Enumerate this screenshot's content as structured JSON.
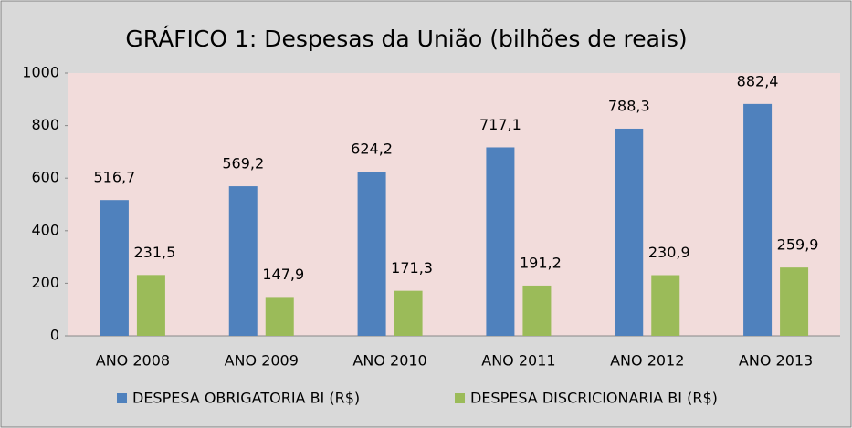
{
  "chart_data": {
    "type": "bar",
    "title": "GRÁFICO 1: Despesas da União (bilhões de reais)",
    "categories": [
      "ANO 2008",
      "ANO 2009",
      "ANO 2010",
      "ANO 2011",
      "ANO 2012",
      "ANO 2013"
    ],
    "series": [
      {
        "name": "DESPESA OBRIGATORIA BI (R$)",
        "color": "#4f81bd",
        "values": [
          516.7,
          569.2,
          624.2,
          717.1,
          788.3,
          882.4
        ],
        "value_labels": [
          "516,7",
          "569,2",
          "624,2",
          "717,1",
          "788,3",
          "882,4"
        ]
      },
      {
        "name": "DESPESA DISCRICIONARIA BI (R$)",
        "color": "#9bbb59",
        "values": [
          231.5,
          147.9,
          171.3,
          191.2,
          230.9,
          259.9
        ],
        "value_labels": [
          "231,5",
          "147,9",
          "171,3",
          "191,2",
          "230,9",
          "259,9"
        ]
      }
    ],
    "ylim": [
      0,
      1000
    ],
    "yticks": [
      0,
      200,
      400,
      600,
      800,
      1000
    ],
    "grid": false,
    "legend": "bottom"
  }
}
